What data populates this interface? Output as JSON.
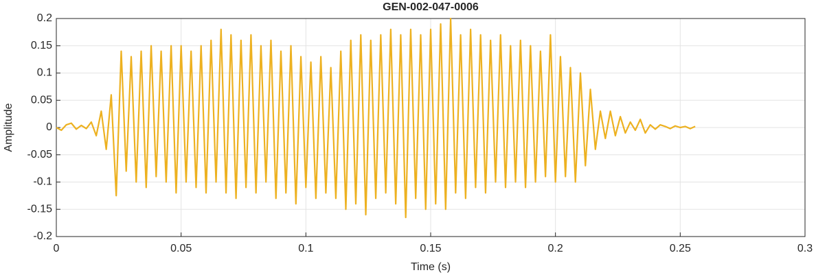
{
  "chart_data": {
    "type": "line",
    "title": "GEN-002-047-0006",
    "xlabel": "Time (s)",
    "ylabel": "Amplitude",
    "xlim": [
      0,
      0.3
    ],
    "ylim": [
      -0.2,
      0.2
    ],
    "xticks": [
      0,
      0.05,
      0.1,
      0.15,
      0.2,
      0.25,
      0.3
    ],
    "yticks": [
      -0.2,
      -0.15,
      -0.1,
      -0.05,
      0,
      0.05,
      0.1,
      0.15,
      0.2
    ],
    "grid": true,
    "x": [
      0,
      0.002,
      0.004,
      0.006,
      0.008,
      0.01,
      0.012,
      0.014,
      0.016,
      0.018,
      0.02,
      0.022,
      0.024,
      0.026,
      0.028,
      0.03,
      0.032,
      0.034,
      0.036,
      0.038,
      0.04,
      0.042,
      0.044,
      0.046,
      0.048,
      0.05,
      0.052,
      0.054,
      0.056,
      0.058,
      0.06,
      0.062,
      0.064,
      0.066,
      0.068,
      0.07,
      0.072,
      0.074,
      0.076,
      0.078,
      0.08,
      0.082,
      0.084,
      0.086,
      0.088,
      0.09,
      0.092,
      0.094,
      0.096,
      0.098,
      0.1,
      0.102,
      0.104,
      0.106,
      0.108,
      0.11,
      0.112,
      0.114,
      0.116,
      0.118,
      0.12,
      0.122,
      0.124,
      0.126,
      0.128,
      0.13,
      0.132,
      0.134,
      0.136,
      0.138,
      0.14,
      0.142,
      0.144,
      0.146,
      0.148,
      0.15,
      0.152,
      0.154,
      0.156,
      0.158,
      0.16,
      0.162,
      0.164,
      0.166,
      0.168,
      0.17,
      0.172,
      0.174,
      0.176,
      0.178,
      0.18,
      0.182,
      0.184,
      0.186,
      0.188,
      0.19,
      0.192,
      0.194,
      0.196,
      0.198,
      0.2,
      0.202,
      0.204,
      0.206,
      0.208,
      0.21,
      0.212,
      0.214,
      0.216,
      0.218,
      0.22,
      0.222,
      0.224,
      0.226,
      0.228,
      0.23,
      0.232,
      0.234,
      0.236,
      0.238,
      0.24,
      0.242,
      0.244,
      0.246,
      0.248,
      0.25,
      0.252,
      0.254,
      0.256
    ],
    "series": [
      {
        "color": "#edb120",
        "values": [
          0,
          -0.005,
          0.005,
          0.008,
          -0.003,
          0.004,
          -0.002,
          0.01,
          -0.015,
          0.03,
          -0.04,
          0.06,
          -0.125,
          0.14,
          -0.08,
          0.13,
          -0.1,
          0.14,
          -0.11,
          0.15,
          -0.09,
          0.14,
          -0.1,
          0.15,
          -0.12,
          0.15,
          -0.1,
          0.14,
          -0.11,
          0.15,
          -0.12,
          0.16,
          -0.1,
          0.18,
          -0.12,
          0.17,
          -0.13,
          0.16,
          -0.11,
          0.17,
          -0.12,
          0.15,
          -0.1,
          0.16,
          -0.13,
          0.14,
          -0.12,
          0.15,
          -0.14,
          0.13,
          -0.11,
          0.12,
          -0.13,
          0.13,
          -0.12,
          0.11,
          -0.13,
          0.14,
          -0.15,
          0.16,
          -0.14,
          0.17,
          -0.16,
          0.16,
          -0.13,
          0.17,
          -0.12,
          0.18,
          -0.14,
          0.17,
          -0.165,
          0.18,
          -0.13,
          0.17,
          -0.15,
          0.18,
          -0.14,
          0.19,
          -0.15,
          0.2,
          -0.12,
          0.17,
          -0.13,
          0.18,
          -0.11,
          0.17,
          -0.12,
          0.16,
          -0.1,
          0.17,
          -0.11,
          0.15,
          -0.1,
          0.16,
          -0.11,
          0.15,
          -0.1,
          0.14,
          -0.09,
          0.17,
          -0.1,
          0.13,
          -0.09,
          0.11,
          -0.1,
          0.1,
          -0.07,
          0.07,
          -0.04,
          0.03,
          -0.02,
          0.03,
          -0.015,
          0.02,
          -0.01,
          0.01,
          -0.005,
          0.015,
          -0.01,
          0.005,
          -0.003,
          0.005,
          0.002,
          -0.002,
          0.003,
          0,
          0.002,
          -0.002,
          0.002
        ]
      }
    ]
  }
}
